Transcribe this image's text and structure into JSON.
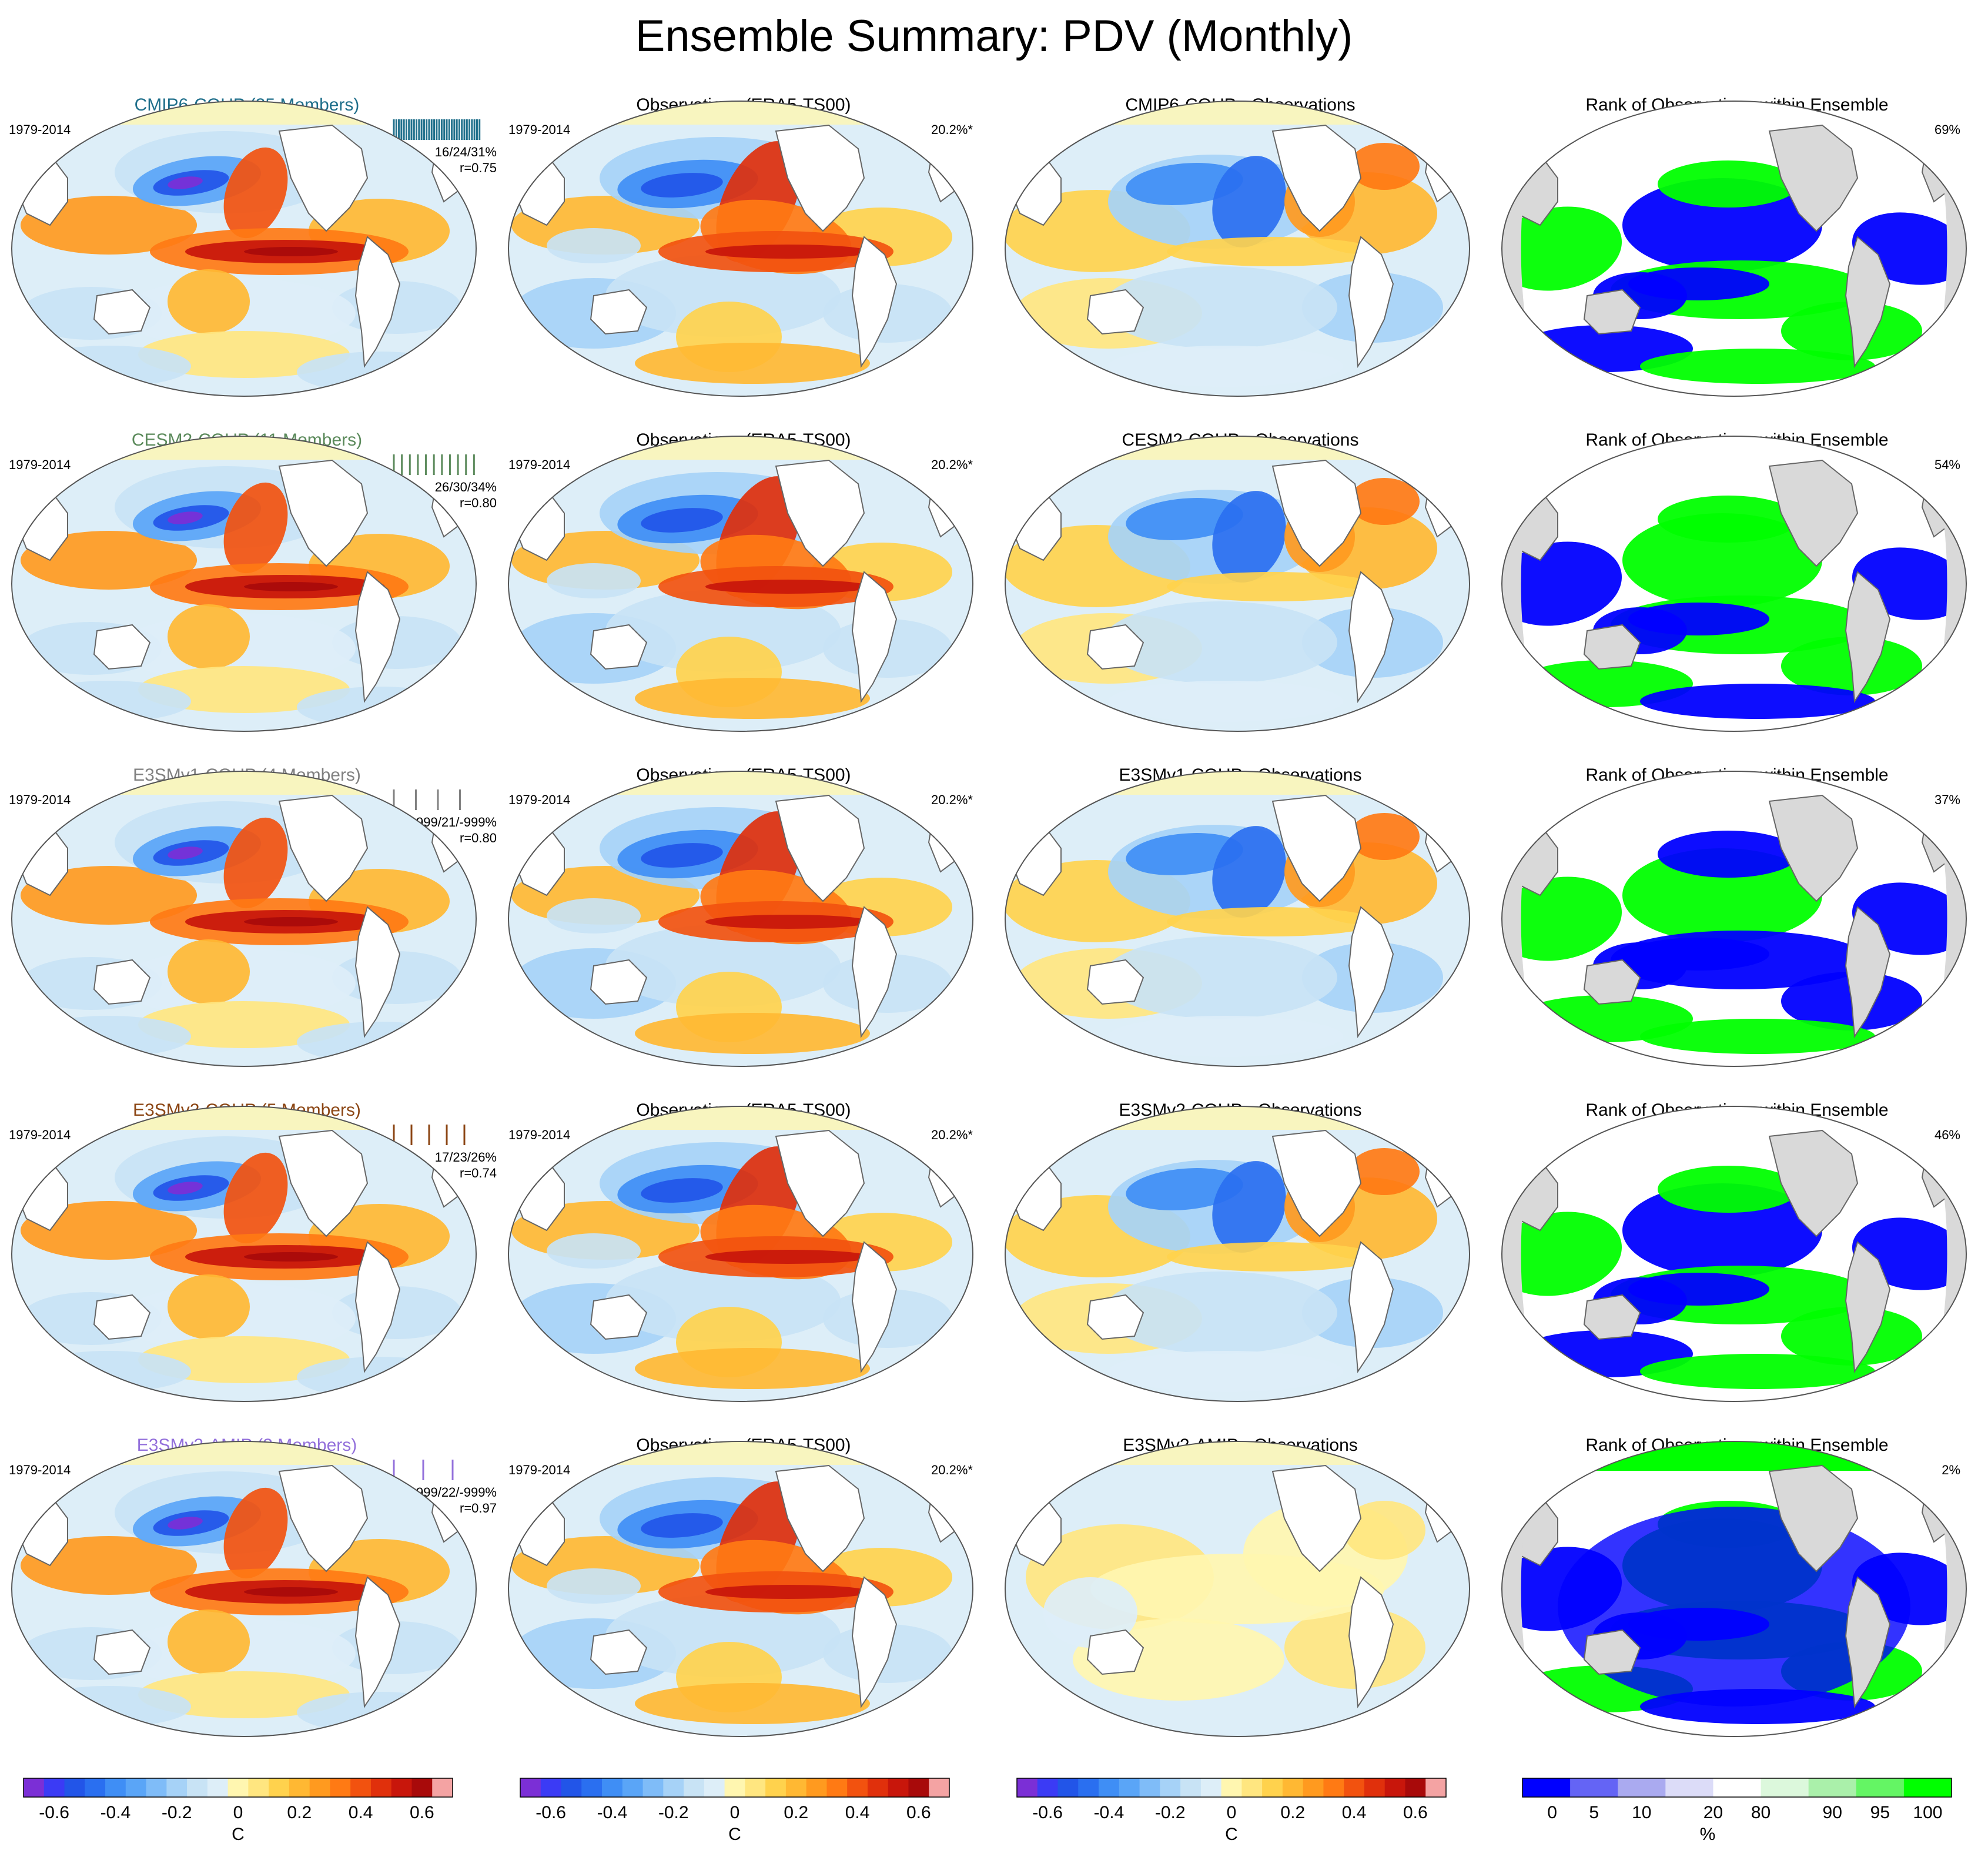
{
  "title": "Ensemble Summary: PDV (Monthly)",
  "period": "1979-2014",
  "obs_title": "Observations (ERA5-TS00)",
  "obs_pct": "20.2%*",
  "rank_title": "Rank of Observations within Ensemble",
  "colors": {
    "land": "#ffffff",
    "rank_land": "#d9d9d9",
    "coast": "#666666"
  },
  "rows": [
    {
      "model_title": "CMIP6-COUP (35 Members)",
      "model_color": "#1f6f8b",
      "stats": "16/24/31%",
      "r": "r=0.75",
      "diff_title": "CMIP6-COUP - Observations",
      "rank_pct": "69%",
      "member_ticks": 35
    },
    {
      "model_title": "CESM2-COUP (11 Members)",
      "model_color": "#5b8a5b",
      "stats": "26/30/34%",
      "r": "r=0.80",
      "diff_title": "CESM2-COUP - Observations",
      "rank_pct": "54%",
      "member_ticks": 11
    },
    {
      "model_title": "E3SMv1-COUP (4 Members)",
      "model_color": "#808080",
      "stats": "-999/21/-999%",
      "r": "r=0.80",
      "diff_title": "E3SMv1-COUP - Observations",
      "rank_pct": "37%",
      "member_ticks": 4
    },
    {
      "model_title": "E3SMv2-COUP (5 Members)",
      "model_color": "#8b4513",
      "stats": "17/23/26%",
      "r": "r=0.74",
      "diff_title": "E3SMv2-COUP - Observations",
      "rank_pct": "46%",
      "member_ticks": 5
    },
    {
      "model_title": "E3SMv2-AMIP (3 Members)",
      "model_color": "#9370db",
      "stats": "-999/22/-999%",
      "r": "r=0.97",
      "diff_title": "E3SMv2-AMIP - Observations",
      "rank_pct": "2%",
      "member_ticks": 3
    }
  ],
  "chart_data": [
    {
      "type": "heatmap",
      "title": "Ensemble Summary: PDV (Monthly)",
      "panels": "5 rows x 4 columns of global maps (ensemble mean, observations, difference, rank)",
      "colorbar_temp": {
        "unit": "C",
        "range": [
          -0.7,
          0.7
        ],
        "ticks": [
          -0.6,
          -0.4,
          -0.2,
          0,
          0.2,
          0.4,
          0.6
        ],
        "tick_labels": [
          "-0.6",
          "-0.4",
          "-0.2",
          "0",
          "0.2",
          "0.4",
          "0.6"
        ],
        "colors": [
          "#7b2fd6",
          "#3b3bf5",
          "#2255e8",
          "#2a6ff0",
          "#3f8ef5",
          "#5aa5f7",
          "#7fbcf8",
          "#a6d2f7",
          "#c8e3f5",
          "#ddeef8",
          "#fff6b0",
          "#ffe680",
          "#ffd24d",
          "#ffb833",
          "#ff9a1f",
          "#ff7a14",
          "#f2520f",
          "#e0300c",
          "#c8160b",
          "#a80a0a",
          "#f4a3a3"
        ]
      },
      "colorbar_rank": {
        "unit": "%",
        "boundaries": [
          0,
          5,
          10,
          20,
          80,
          90,
          95,
          100
        ],
        "tick_labels": [
          "0",
          "5",
          "10",
          "20",
          "80",
          "90",
          "95",
          "100"
        ],
        "colors": [
          "#0000ff",
          "#6464f5",
          "#aaaaf0",
          "#dcdcf8",
          "#ffffff",
          "#dcf8dc",
          "#aaf0aa",
          "#64f564",
          "#00ff00"
        ]
      }
    }
  ]
}
